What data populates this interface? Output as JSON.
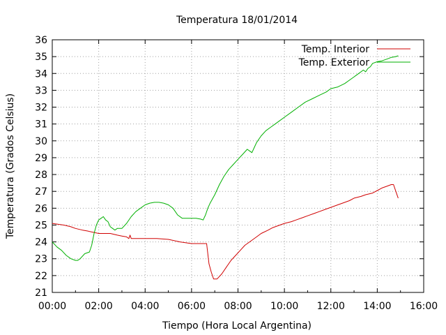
{
  "chart_data": {
    "type": "line",
    "title": "Temperatura 18/01/2014",
    "xlabel": "Tiempo (Hora Local Argentina)",
    "ylabel": "Temperatura (Grados Celsius)",
    "xlim": [
      0,
      16
    ],
    "ylim": [
      21,
      36
    ],
    "x_tick_labels": [
      "00:00",
      "02:00",
      "04:00",
      "06:00",
      "08:00",
      "10:00",
      "12:00",
      "14:00",
      "16:00"
    ],
    "y_tick_labels": [
      "21",
      "22",
      "23",
      "24",
      "25",
      "26",
      "27",
      "28",
      "29",
      "30",
      "31",
      "32",
      "33",
      "34",
      "35",
      "36"
    ],
    "grid": true,
    "legend_position": "top-right",
    "series": [
      {
        "name": "Temp. Interior",
        "color": "#d00000",
        "x": [
          0.0,
          0.5,
          0.8,
          1.0,
          1.3,
          1.5,
          2.0,
          2.5,
          2.8,
          3.0,
          3.2,
          3.3,
          3.35,
          3.4,
          3.5,
          3.6,
          4.0,
          4.5,
          5.0,
          5.5,
          6.0,
          6.5,
          6.65,
          6.75,
          6.85,
          6.95,
          7.1,
          7.3,
          7.5,
          7.7,
          7.9,
          8.1,
          8.3,
          8.5,
          8.8,
          9.0,
          9.3,
          9.5,
          9.8,
          10.0,
          10.3,
          10.5,
          10.8,
          11.0,
          11.3,
          11.5,
          11.8,
          12.0,
          12.3,
          12.5,
          12.8,
          13.0,
          13.3,
          13.5,
          13.8,
          14.0,
          14.2,
          14.4,
          14.6,
          14.7,
          14.8,
          14.9
        ],
        "y": [
          25.1,
          25.0,
          24.9,
          24.8,
          24.7,
          24.65,
          24.5,
          24.5,
          24.4,
          24.35,
          24.3,
          24.2,
          24.4,
          24.2,
          24.2,
          24.2,
          24.2,
          24.2,
          24.15,
          24.0,
          23.9,
          23.9,
          23.9,
          22.7,
          22.2,
          21.8,
          21.8,
          22.1,
          22.5,
          22.9,
          23.2,
          23.5,
          23.8,
          24.0,
          24.3,
          24.5,
          24.7,
          24.85,
          25.0,
          25.1,
          25.2,
          25.3,
          25.45,
          25.55,
          25.7,
          25.8,
          25.95,
          26.05,
          26.2,
          26.3,
          26.45,
          26.6,
          26.7,
          26.8,
          26.9,
          27.05,
          27.2,
          27.3,
          27.4,
          27.4,
          27.0,
          26.6
        ]
      },
      {
        "name": "Temp. Exterior",
        "color": "#00b000",
        "x": [
          0.0,
          0.2,
          0.4,
          0.6,
          0.8,
          1.0,
          1.1,
          1.2,
          1.4,
          1.6,
          1.7,
          1.8,
          1.9,
          2.0,
          2.1,
          2.2,
          2.3,
          2.4,
          2.5,
          2.6,
          2.7,
          2.8,
          3.0,
          3.2,
          3.4,
          3.6,
          3.8,
          4.0,
          4.2,
          4.4,
          4.6,
          4.8,
          5.0,
          5.2,
          5.4,
          5.6,
          5.8,
          6.0,
          6.2,
          6.4,
          6.5,
          6.6,
          6.7,
          6.8,
          7.0,
          7.2,
          7.4,
          7.6,
          7.8,
          8.0,
          8.2,
          8.4,
          8.5,
          8.6,
          8.7,
          8.8,
          9.0,
          9.2,
          9.4,
          9.6,
          9.8,
          10.0,
          10.3,
          10.6,
          10.9,
          11.2,
          11.5,
          11.8,
          12.0,
          12.3,
          12.6,
          12.8,
          13.0,
          13.2,
          13.4,
          13.5,
          13.6,
          13.7,
          13.8,
          14.0,
          14.2,
          14.4,
          14.6,
          14.8,
          14.9
        ],
        "y": [
          24.0,
          23.7,
          23.5,
          23.2,
          23.0,
          22.9,
          22.9,
          23.0,
          23.3,
          23.4,
          23.8,
          24.5,
          25.0,
          25.3,
          25.4,
          25.5,
          25.3,
          25.2,
          24.9,
          24.8,
          24.7,
          24.8,
          24.8,
          25.1,
          25.5,
          25.8,
          26.0,
          26.2,
          26.3,
          26.35,
          26.35,
          26.3,
          26.2,
          26.0,
          25.6,
          25.4,
          25.4,
          25.4,
          25.4,
          25.35,
          25.3,
          25.6,
          26.0,
          26.3,
          26.8,
          27.4,
          27.9,
          28.3,
          28.6,
          28.9,
          29.2,
          29.5,
          29.4,
          29.3,
          29.6,
          29.9,
          30.3,
          30.6,
          30.8,
          31.0,
          31.2,
          31.4,
          31.7,
          32.0,
          32.3,
          32.5,
          32.7,
          32.9,
          33.1,
          33.2,
          33.4,
          33.6,
          33.8,
          34.0,
          34.2,
          34.1,
          34.3,
          34.4,
          34.6,
          34.7,
          34.75,
          34.85,
          34.95,
          35.0,
          35.05
        ]
      }
    ]
  }
}
